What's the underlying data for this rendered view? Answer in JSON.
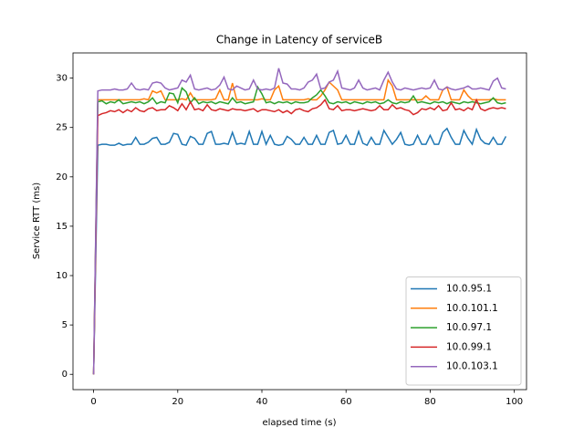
{
  "chart_data": {
    "type": "line",
    "title": "Change in Latency of serviceB",
    "x_label": "elapsed time (s)",
    "y_label": "Service RTT (ms)",
    "xlim": [
      -4.9,
      102.9
    ],
    "ylim": [
      -1.55,
      32.55
    ],
    "xticks": [
      0,
      20,
      40,
      60,
      80,
      100
    ],
    "yticks": [
      0,
      5,
      10,
      15,
      20,
      25,
      30
    ],
    "legend": "lower right",
    "x": [
      0,
      1,
      2,
      3,
      4,
      5,
      6,
      7,
      8,
      9,
      10,
      11,
      12,
      13,
      14,
      15,
      16,
      17,
      18,
      19,
      20,
      21,
      22,
      23,
      24,
      25,
      26,
      27,
      28,
      29,
      30,
      31,
      32,
      33,
      34,
      35,
      36,
      37,
      38,
      39,
      40,
      41,
      42,
      43,
      44,
      45,
      46,
      47,
      48,
      49,
      50,
      51,
      52,
      53,
      54,
      55,
      56,
      57,
      58,
      59,
      60,
      61,
      62,
      63,
      64,
      65,
      66,
      67,
      68,
      69,
      70,
      71,
      72,
      73,
      74,
      75,
      76,
      77,
      78,
      79,
      80,
      81,
      82,
      83,
      84,
      85,
      86,
      87,
      88,
      89,
      90,
      91,
      92,
      93,
      94,
      95,
      96,
      97,
      98
    ],
    "series": [
      {
        "name": "10.0.95.1",
        "color": "#1f77b4",
        "values": [
          0,
          23.2,
          23.3,
          23.3,
          23.2,
          23.2,
          23.4,
          23.2,
          23.3,
          23.3,
          24.0,
          23.3,
          23.3,
          23.5,
          23.9,
          24.0,
          23.3,
          23.3,
          23.5,
          24.4,
          24.3,
          23.3,
          23.2,
          24.1,
          23.9,
          23.3,
          23.3,
          24.4,
          24.6,
          23.3,
          23.3,
          23.4,
          23.3,
          24.5,
          23.3,
          23.4,
          23.3,
          24.6,
          23.3,
          23.3,
          24.6,
          23.3,
          24.2,
          23.3,
          23.2,
          23.3,
          24.1,
          23.8,
          23.3,
          23.3,
          24.0,
          23.3,
          23.3,
          24.2,
          23.3,
          23.3,
          24.5,
          24.7,
          23.3,
          23.4,
          24.2,
          23.3,
          23.3,
          24.6,
          23.4,
          23.2,
          24.0,
          23.3,
          23.3,
          24.7,
          24.0,
          23.3,
          23.8,
          24.5,
          23.3,
          23.2,
          23.3,
          24.2,
          23.3,
          23.3,
          24.2,
          23.3,
          23.3,
          24.5,
          24.9,
          24.0,
          23.3,
          23.3,
          24.7,
          23.9,
          23.3,
          24.8,
          23.8,
          23.4,
          23.3,
          24.0,
          23.3,
          23.3,
          24.1
        ]
      },
      {
        "name": "10.0.101.1",
        "color": "#ff7f0e",
        "values": [
          0,
          27.8,
          27.8,
          27.8,
          27.8,
          27.8,
          27.8,
          27.8,
          27.8,
          27.8,
          27.8,
          27.8,
          27.9,
          27.8,
          28.7,
          28.5,
          28.7,
          27.8,
          27.8,
          27.8,
          27.8,
          27.9,
          27.8,
          28.5,
          27.8,
          27.8,
          27.8,
          27.8,
          27.8,
          27.9,
          28.8,
          27.8,
          27.8,
          29.5,
          27.8,
          27.8,
          27.8,
          27.8,
          27.8,
          27.8,
          27.9,
          27.8,
          27.8,
          28.8,
          29.2,
          27.8,
          27.8,
          27.8,
          27.8,
          27.8,
          27.8,
          27.9,
          27.8,
          27.8,
          28.2,
          28.8,
          29.6,
          29.2,
          28.8,
          27.8,
          27.8,
          27.8,
          27.8,
          27.8,
          27.8,
          27.8,
          27.8,
          27.8,
          27.8,
          27.8,
          29.8,
          29.2,
          27.8,
          27.8,
          27.8,
          27.8,
          27.8,
          27.8,
          27.8,
          28.2,
          27.8,
          27.8,
          27.8,
          28.8,
          29.1,
          27.8,
          27.8,
          27.8,
          28.8,
          28.2,
          27.8,
          27.8,
          27.8,
          27.8,
          27.8,
          27.9,
          27.8,
          27.8,
          27.8
        ]
      },
      {
        "name": "10.0.97.1",
        "color": "#2ca02c",
        "values": [
          0,
          27.6,
          27.7,
          27.4,
          27.6,
          27.5,
          27.8,
          27.4,
          27.5,
          27.6,
          27.5,
          27.6,
          27.4,
          27.6,
          28.0,
          27.4,
          27.6,
          27.5,
          28.5,
          28.4,
          27.5,
          29.0,
          28.6,
          27.5,
          28.0,
          27.4,
          27.6,
          27.5,
          27.6,
          27.4,
          27.6,
          27.5,
          27.4,
          28.0,
          27.5,
          27.6,
          27.4,
          27.5,
          27.6,
          29.1,
          28.4,
          27.5,
          27.6,
          27.4,
          27.6,
          27.5,
          27.6,
          27.4,
          27.6,
          27.5,
          27.5,
          27.6,
          28.0,
          28.3,
          28.8,
          28.2,
          27.5,
          27.4,
          27.6,
          27.5,
          27.6,
          27.4,
          27.6,
          27.5,
          27.4,
          27.6,
          27.5,
          27.6,
          27.4,
          27.5,
          27.8,
          27.5,
          27.4,
          27.6,
          27.5,
          27.6,
          28.2,
          27.5,
          27.6,
          27.5,
          27.4,
          27.6,
          27.5,
          27.6,
          27.4,
          27.6,
          27.5,
          27.4,
          27.6,
          27.5,
          27.6,
          27.5,
          27.4,
          27.5,
          27.6,
          28.0,
          27.5,
          27.4,
          27.5
        ]
      },
      {
        "name": "10.0.99.1",
        "color": "#d62728",
        "values": [
          0,
          26.2,
          26.4,
          26.5,
          26.7,
          26.6,
          26.8,
          26.5,
          26.8,
          26.6,
          27.0,
          26.7,
          26.6,
          26.9,
          27.0,
          26.7,
          26.8,
          26.8,
          27.2,
          27.0,
          26.7,
          27.4,
          26.8,
          27.6,
          26.8,
          26.9,
          26.7,
          27.3,
          26.8,
          26.7,
          26.9,
          26.8,
          26.7,
          26.9,
          26.8,
          26.8,
          26.7,
          26.8,
          26.9,
          26.6,
          26.8,
          26.8,
          26.7,
          26.6,
          26.8,
          26.5,
          26.7,
          26.4,
          26.8,
          26.9,
          26.7,
          26.6,
          26.9,
          27.0,
          27.3,
          27.8,
          26.9,
          26.8,
          27.2,
          26.7,
          26.8,
          26.8,
          26.7,
          26.8,
          26.9,
          26.8,
          26.7,
          26.8,
          27.2,
          26.8,
          26.8,
          27.3,
          26.9,
          27.0,
          26.8,
          26.7,
          26.3,
          26.5,
          26.9,
          26.8,
          27.0,
          26.8,
          27.2,
          26.7,
          26.8,
          27.5,
          26.8,
          26.9,
          26.7,
          27.0,
          26.8,
          27.8,
          26.9,
          26.7,
          26.9,
          27.0,
          26.9,
          27.0,
          26.9
        ]
      },
      {
        "name": "10.0.103.1",
        "color": "#9467bd",
        "values": [
          0,
          28.7,
          28.8,
          28.8,
          28.8,
          28.9,
          28.8,
          28.8,
          28.9,
          29.5,
          28.9,
          28.8,
          28.9,
          28.8,
          29.5,
          29.6,
          29.5,
          29.0,
          28.8,
          28.9,
          29.0,
          29.8,
          29.6,
          30.3,
          28.9,
          28.8,
          28.9,
          29.0,
          28.8,
          28.9,
          29.3,
          30.1,
          28.9,
          28.8,
          29.2,
          29.0,
          28.8,
          28.9,
          29.8,
          28.9,
          28.8,
          28.9,
          28.8,
          29.0,
          31.0,
          29.5,
          29.4,
          28.9,
          28.9,
          28.8,
          29.0,
          29.6,
          29.8,
          30.4,
          28.9,
          29.0,
          29.6,
          29.8,
          30.7,
          29.0,
          28.9,
          28.8,
          29.0,
          29.8,
          29.0,
          28.8,
          28.9,
          29.0,
          28.8,
          29.8,
          30.6,
          29.6,
          28.9,
          28.8,
          29.0,
          28.9,
          28.8,
          28.9,
          29.0,
          28.9,
          29.0,
          29.8,
          28.9,
          28.8,
          29.1,
          28.9,
          28.8,
          28.9,
          29.0,
          29.2,
          28.9,
          28.9,
          29.0,
          28.9,
          28.8,
          29.7,
          30.0,
          29.0,
          28.9
        ]
      }
    ]
  }
}
